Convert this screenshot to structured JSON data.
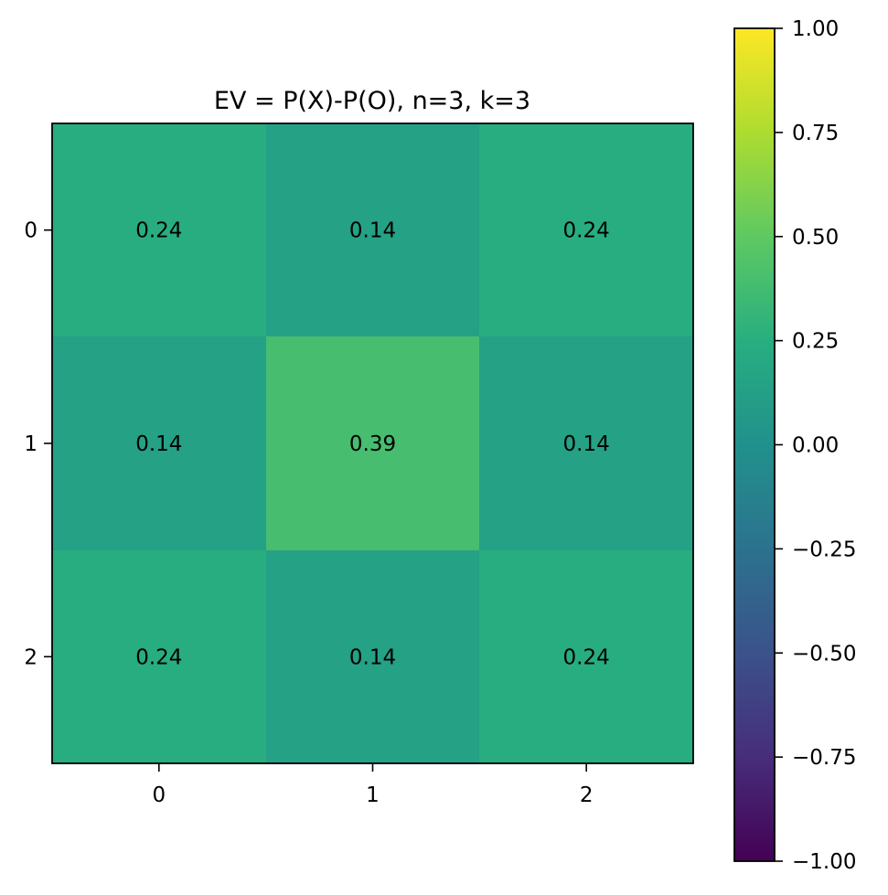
{
  "chart_data": {
    "type": "heatmap",
    "title": "EV = P(X)-P(O), n=3, k=3",
    "xlabel": "",
    "ylabel": "",
    "x_categories": [
      "0",
      "1",
      "2"
    ],
    "y_categories": [
      "0",
      "1",
      "2"
    ],
    "values": [
      [
        0.24,
        0.14,
        0.24
      ],
      [
        0.14,
        0.39,
        0.14
      ],
      [
        0.24,
        0.14,
        0.24
      ]
    ],
    "cell_labels": [
      [
        "0.24",
        "0.14",
        "0.24"
      ],
      [
        "0.14",
        "0.39",
        "0.14"
      ],
      [
        "0.24",
        "0.14",
        "0.24"
      ]
    ],
    "colormap": "viridis",
    "vmin": -1.0,
    "vmax": 1.0,
    "colorbar_ticks": [
      1.0,
      0.75,
      0.5,
      0.25,
      0.0,
      -0.25,
      -0.5,
      -0.75,
      -1.0
    ],
    "colorbar_tick_labels": [
      "1.00",
      "0.75",
      "0.50",
      "0.25",
      "0.00",
      "−0.25",
      "−0.50",
      "−0.75",
      "−1.00"
    ],
    "grid": false,
    "legend": "colorbar-right"
  }
}
